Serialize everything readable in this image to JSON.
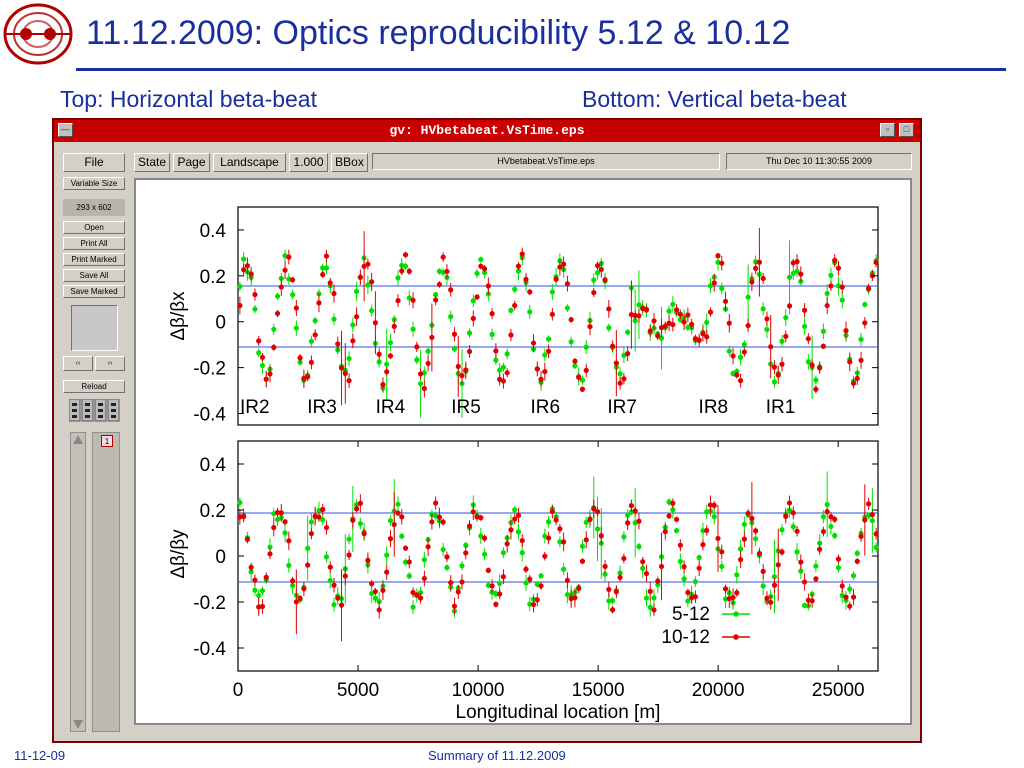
{
  "slide": {
    "title": "11.12.2009: Optics reproducibility 5.12 & 10.12",
    "subtitle_left": "Top: Horizontal beta-beat",
    "subtitle_right": "Bottom: Vertical beta-beat",
    "footer_left": "11-12-09",
    "footer_center": "Summary of 11.12.2009"
  },
  "gv": {
    "window_title": "gv: HVbetabeat.VsTime.eps",
    "file_label": "File",
    "state_label": "State",
    "page_label": "Page",
    "orientation_label": "Landscape",
    "zoom": "1.000",
    "bbox_label": "BBox",
    "filename": "HVbetabeat.VsTime.eps",
    "date": "Thu Dec 10 11:30:55 2009",
    "variable_size_label": "Variable Size",
    "size_readout": "293 x 602",
    "side_buttons": [
      "Open",
      "Print All",
      "Print Marked",
      "Save All",
      "Save Marked"
    ],
    "reload_label": "Reload",
    "page_number": "1"
  },
  "chart_data": [
    {
      "type": "scatter",
      "title": "",
      "ylabel": "Δβ/βx",
      "xlabel": "",
      "xlim": [
        0,
        26659
      ],
      "ylim": [
        -0.45,
        0.5
      ],
      "yticks": [
        "0.4",
        "0.2",
        "0",
        "-0.2",
        "-0.4"
      ],
      "reference_lines_y": [
        0.14,
        -0.14
      ],
      "annotations": [
        {
          "text": "IR2",
          "x": 700
        },
        {
          "text": "IR3",
          "x": 3500
        },
        {
          "text": "IR4",
          "x": 6350
        },
        {
          "text": "IR5",
          "x": 9500
        },
        {
          "text": "IR6",
          "x": 12800
        },
        {
          "text": "IR7",
          "x": 16000
        },
        {
          "text": "IR8",
          "x": 19800
        },
        {
          "text": "IR1",
          "x": 22600
        }
      ],
      "series": [
        {
          "name": "5-12",
          "color": "#00e000",
          "amplitude": 0.25
        },
        {
          "name": "10-12",
          "color": "#e00000",
          "amplitude": 0.26
        }
      ],
      "grid": false
    },
    {
      "type": "scatter",
      "title": "",
      "ylabel": "Δβ/βy",
      "xlabel": "Longitudinal location [m]",
      "xlim": [
        0,
        26659
      ],
      "ylim": [
        -0.5,
        0.5
      ],
      "yticks": [
        "0.4",
        "0.2",
        "0",
        "-0.2",
        "-0.4"
      ],
      "xticks": [
        "0",
        "5000",
        "10000",
        "15000",
        "20000",
        "25000"
      ],
      "reference_lines_y": [
        0.16,
        -0.15
      ],
      "legend_position": "bottom-right",
      "series": [
        {
          "name": "5-12",
          "color": "#00e000",
          "amplitude": 0.2
        },
        {
          "name": "10-12",
          "color": "#e00000",
          "amplitude": 0.2
        }
      ],
      "grid": false
    }
  ]
}
